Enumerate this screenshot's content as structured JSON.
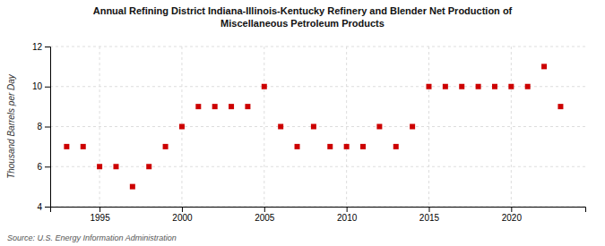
{
  "chart_data": {
    "type": "scatter",
    "title": "Annual Refining District Indiana-Illinois-Kentucky Refinery and Blender Net Production of\nMiscellaneous Petroleum Products",
    "ylabel": "Thousand Barrels per Day",
    "source": "Source: U.S. Energy Information Administration",
    "x": [
      1993,
      1994,
      1995,
      1996,
      1997,
      1998,
      1999,
      2000,
      2001,
      2002,
      2003,
      2004,
      2005,
      2006,
      2007,
      2008,
      2009,
      2010,
      2011,
      2012,
      2013,
      2014,
      2015,
      2016,
      2017,
      2018,
      2019,
      2020,
      2021,
      2022,
      2023
    ],
    "values": [
      7,
      7,
      6,
      6,
      5,
      6,
      7,
      8,
      9,
      9,
      9,
      9,
      10,
      8,
      7,
      8,
      7,
      7,
      7,
      8,
      7,
      8,
      10,
      10,
      10,
      10,
      10,
      10,
      10,
      11,
      9
    ],
    "color": "#cc0000",
    "marker": "square",
    "xlim": [
      1992.0,
      2024.5
    ],
    "xticks": [
      1995,
      2000,
      2005,
      2010,
      2015,
      2020
    ],
    "ylim": [
      4,
      12
    ],
    "yticks": [
      4,
      6,
      8,
      10,
      12
    ],
    "grid": true
  }
}
